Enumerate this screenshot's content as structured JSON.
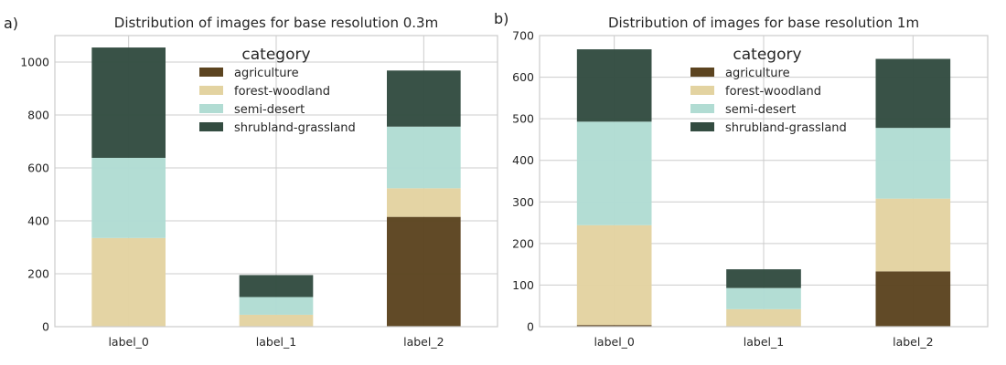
{
  "colors": {
    "agriculture": "#5c4420",
    "forest-woodland": "#e3d3a1",
    "semi-desert": "#b1dcd3",
    "shrubland-grassland": "#334c41",
    "grid": "#cccccc",
    "text": "#262626"
  },
  "chart_data": [
    {
      "type": "bar",
      "stacked": true,
      "panel_label": "a)",
      "title": "Distribution of images for base resolution 0.3m",
      "xlabel": "",
      "ylabel": "",
      "categories": [
        "label_0",
        "label_1",
        "label_2"
      ],
      "ylim": [
        0,
        1100
      ],
      "yticks": [
        0,
        200,
        400,
        600,
        800,
        1000
      ],
      "grid": true,
      "legend_title": "category",
      "legend_position": "upper-center",
      "series": [
        {
          "name": "agriculture",
          "values": [
            0,
            0,
            415
          ]
        },
        {
          "name": "forest-woodland",
          "values": [
            335,
            45,
            108
          ]
        },
        {
          "name": "semi-desert",
          "values": [
            303,
            67,
            233
          ]
        },
        {
          "name": "shrubland-grassland",
          "values": [
            417,
            83,
            212
          ]
        }
      ]
    },
    {
      "type": "bar",
      "stacked": true,
      "panel_label": "b)",
      "title": "Distribution of images for base resolution 1m",
      "xlabel": "",
      "ylabel": "",
      "categories": [
        "label_0",
        "label_1",
        "label_2"
      ],
      "ylim": [
        0,
        700
      ],
      "yticks": [
        0,
        100,
        200,
        300,
        400,
        500,
        600,
        700
      ],
      "grid": true,
      "legend_title": "category",
      "legend_position": "upper-center",
      "series": [
        {
          "name": "agriculture",
          "values": [
            4,
            0,
            133
          ]
        },
        {
          "name": "forest-woodland",
          "values": [
            240,
            42,
            175
          ]
        },
        {
          "name": "semi-desert",
          "values": [
            249,
            51,
            170
          ]
        },
        {
          "name": "shrubland-grassland",
          "values": [
            174,
            45,
            166
          ]
        }
      ]
    }
  ]
}
